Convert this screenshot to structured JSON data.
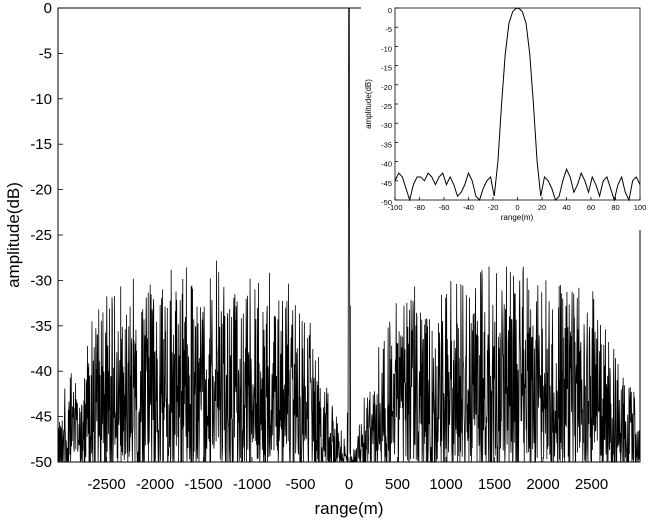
{
  "chart_data": [
    {
      "type": "line",
      "title": "",
      "xlabel": "range(m)",
      "ylabel": "amplitude(dB)",
      "xlim": [
        -3000,
        3000
      ],
      "ylim": [
        -50,
        0
      ],
      "xticks": [
        -2500,
        -2000,
        -1500,
        -1000,
        -500,
        0,
        500,
        1000,
        1500,
        2000,
        2500
      ],
      "yticks": [
        0,
        -5,
        -10,
        -15,
        -20,
        -25,
        -30,
        -35,
        -40,
        -45,
        -50
      ],
      "grid": false,
      "series": [
        {
          "description_points": {
            "x": [
              -3000,
              -2800,
              -2500,
              -2000,
              -1500,
              -1000,
              -500,
              -300,
              -100,
              -20,
              0,
              20,
              100,
              300,
              500,
              1000,
              1500,
              2000,
              2500,
              2800,
              3000
            ],
            "y_peak_envelope": [
              -43,
              -38,
              -30,
              -28,
              -27,
              -28,
              -30,
              -36,
              -44,
              -48,
              0,
              -48,
              -44,
              -36,
              -30,
              -28,
              -27,
              -28,
              -30,
              -38,
              -43
            ]
          }
        }
      ]
    },
    {
      "type": "line",
      "title": "",
      "xlabel": "range(m)",
      "ylabel": "amplitude(dB)",
      "xlim": [
        -100,
        100
      ],
      "ylim": [
        -50,
        0
      ],
      "xticks": [
        -100,
        -80,
        -60,
        -40,
        -20,
        0,
        20,
        40,
        60,
        80,
        100
      ],
      "yticks": [
        0,
        -5,
        -10,
        -15,
        -20,
        -25,
        -30,
        -35,
        -40,
        -45,
        -50
      ],
      "grid": false,
      "series": [
        {
          "x": [
            -100,
            -97,
            -94,
            -91,
            -88,
            -85,
            -82,
            -79,
            -76,
            -73,
            -70,
            -67,
            -64,
            -61,
            -58,
            -55,
            -52,
            -49,
            -46,
            -43,
            -40,
            -37,
            -34,
            -31,
            -28,
            -25,
            -22,
            -19,
            -16,
            -13,
            -10,
            -7,
            -4,
            -2,
            0,
            2,
            4,
            7,
            10,
            13,
            16,
            19,
            22,
            25,
            28,
            31,
            34,
            37,
            40,
            43,
            46,
            49,
            52,
            55,
            58,
            61,
            64,
            67,
            70,
            73,
            76,
            79,
            82,
            85,
            88,
            91,
            94,
            97,
            100
          ],
          "y": [
            -45,
            -43,
            -44,
            -47,
            -50,
            -46,
            -44,
            -44,
            -45,
            -43,
            -44,
            -46,
            -44,
            -43,
            -46,
            -44,
            -46,
            -49,
            -48,
            -46,
            -43,
            -45,
            -49,
            -50,
            -47,
            -45,
            -44,
            -49,
            -40,
            -25,
            -12,
            -4,
            -1,
            -0.3,
            0,
            -0.3,
            -1,
            -4,
            -12,
            -25,
            -40,
            -49,
            -44,
            -45,
            -47,
            -50,
            -49,
            -45,
            -42,
            -44,
            -48,
            -46,
            -43,
            -45,
            -48,
            -44,
            -46,
            -49,
            -45,
            -44,
            -47,
            -50,
            -46,
            -44,
            -48,
            -50,
            -45,
            -44,
            -46
          ]
        }
      ]
    }
  ]
}
